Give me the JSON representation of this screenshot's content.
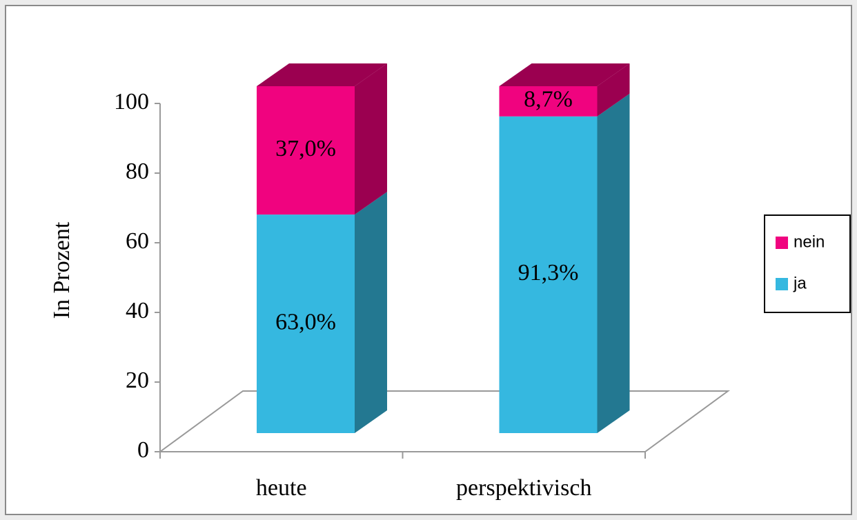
{
  "chart_data": {
    "type": "bar",
    "stacked": true,
    "three_d": true,
    "ylabel": "In Prozent",
    "categories": [
      "heute",
      "perspektivisch"
    ],
    "series": [
      {
        "name": "ja",
        "color": "#35b8e0",
        "side_color": "#237891",
        "values": [
          63.0,
          91.3
        ],
        "value_labels": [
          "63,0%",
          "91,3%"
        ]
      },
      {
        "name": "nein",
        "color": "#f0037f",
        "side_color": "#9b0050",
        "values": [
          37.0,
          8.7
        ],
        "value_labels": [
          "37,0%",
          "8,7%"
        ]
      }
    ],
    "ylim": [
      0,
      100
    ],
    "yticks": [
      0,
      20,
      40,
      60,
      80,
      100
    ],
    "legend": "right"
  }
}
